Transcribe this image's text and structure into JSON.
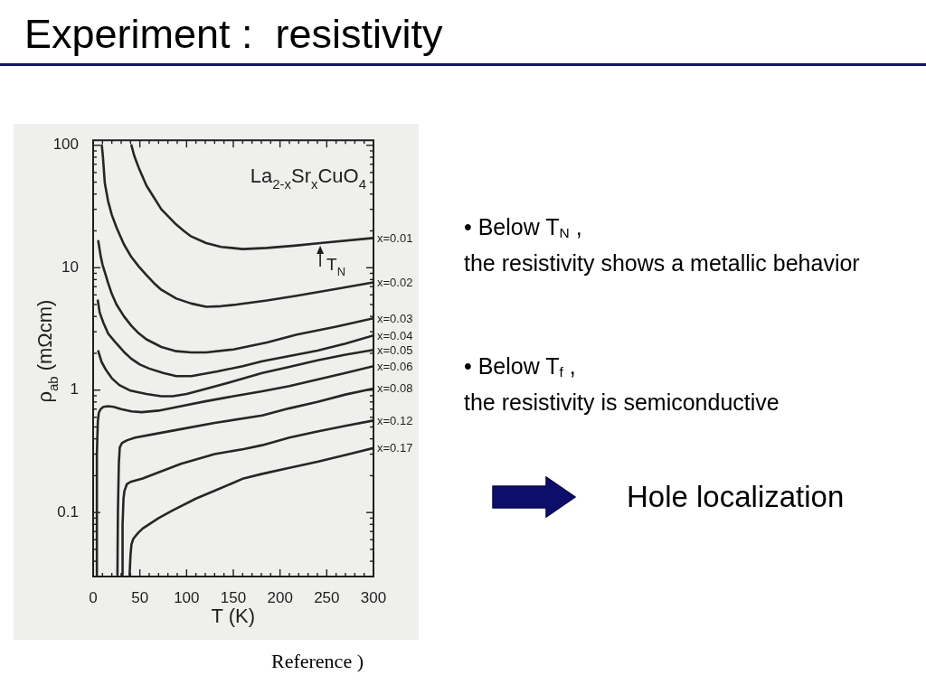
{
  "chart_data": {
    "type": "line",
    "title": "Experiment :  resistivity",
    "xlabel": "T (K)",
    "ylabel": "ρ$_{ab}$ (mΩcm)",
    "log": true,
    "marker": "none",
    "line_style": "solid",
    "legend": "right",
    "xlim": [
      0,
      300
    ],
    "ylim": [
      0.03,
      110
    ],
    "xticks": [
      0,
      {
        "value": 10,
        "label": null
      },
      {
        "value": 20,
        "label": null
      },
      {
        "value": 30,
        "label": null
      },
      {
        "value": 40,
        "label": null
      },
      50,
      {
        "value": 60,
        "label": null
      },
      {
        "value": 70,
        "label": null
      },
      {
        "value": 80,
        "label": null
      },
      {
        "value": 90,
        "label": null
      },
      100,
      {
        "value": 110,
        "label": null
      },
      {
        "value": 120,
        "label": null
      },
      {
        "value": 130,
        "label": null
      },
      {
        "value": 140,
        "label": null
      },
      150,
      {
        "value": 160,
        "label": null
      },
      {
        "value": 170,
        "label": null
      },
      {
        "value": 180,
        "label": null
      },
      {
        "value": 190,
        "label": null
      },
      200,
      {
        "value": 210,
        "label": null
      },
      {
        "value": 220,
        "label": null
      },
      {
        "value": 230,
        "label": null
      },
      {
        "value": 240,
        "label": null
      },
      250,
      {
        "value": 260,
        "label": null
      },
      {
        "value": 270,
        "label": null
      },
      {
        "value": 280,
        "label": null
      },
      {
        "value": 290,
        "label": null
      },
      300
    ],
    "yticks": [
      {
        "value": 0.04,
        "label": null
      },
      {
        "value": 0.05,
        "label": null
      },
      {
        "value": 0.06,
        "label": null
      },
      {
        "value": 0.07,
        "label": null
      },
      {
        "value": 0.08,
        "label": null
      },
      {
        "value": 0.09,
        "label": null
      },
      0.1,
      {
        "value": 0.2,
        "label": null
      },
      {
        "value": 0.3,
        "label": null
      },
      {
        "value": 0.4,
        "label": null
      },
      {
        "value": 0.5,
        "label": null
      },
      {
        "value": 0.6,
        "label": null
      },
      {
        "value": 0.7,
        "label": null
      },
      {
        "value": 0.8,
        "label": null
      },
      {
        "value": 0.9,
        "label": null
      },
      1,
      {
        "value": 2,
        "label": null
      },
      {
        "value": 3,
        "label": null
      },
      {
        "value": 4,
        "label": null
      },
      {
        "value": 5,
        "label": null
      },
      {
        "value": 6,
        "label": null
      },
      {
        "value": 7,
        "label": null
      },
      {
        "value": 8,
        "label": null
      },
      {
        "value": 9,
        "label": null
      },
      10,
      {
        "value": 20,
        "label": null
      },
      {
        "value": 30,
        "label": null
      },
      {
        "value": 40,
        "label": null
      },
      {
        "value": 50,
        "label": null
      },
      {
        "value": 60,
        "label": null
      },
      {
        "value": 70,
        "label": null
      },
      {
        "value": 80,
        "label": null
      },
      {
        "value": 90,
        "label": null
      },
      100
    ],
    "series": [
      {
        "name": "x=0.01",
        "color": "#262626",
        "x": [
          41,
          44,
          49,
          57,
          65,
          73,
          81,
          89,
          97,
          105,
          121,
          137,
          160,
          186,
          218,
          243,
          300
        ],
        "values": [
          100,
          82,
          65,
          47,
          37.5,
          30,
          26,
          22.5,
          20,
          18,
          15.9,
          14.8,
          14.2,
          14.5,
          15.2,
          15.9,
          17.5
        ]
      },
      {
        "name": "x=0.02",
        "color": "#262626",
        "x": [
          9.3,
          10.5,
          12.5,
          16,
          20,
          25,
          33,
          41,
          49,
          57,
          65,
          73,
          89,
          105,
          121,
          137,
          153.5,
          186,
          218,
          260,
          300
        ],
        "values": [
          100,
          80,
          49,
          35,
          27,
          21.3,
          15.5,
          12.2,
          10.2,
          8.7,
          7.5,
          6.6,
          5.6,
          5.1,
          4.8,
          4.85,
          5.0,
          5.4,
          5.9,
          6.7,
          7.6
        ]
      },
      {
        "name": "x=0.03",
        "color": "#262626",
        "x": [
          5.5,
          8,
          10,
          12.5,
          16,
          20,
          25,
          33,
          41,
          49,
          57,
          73,
          89,
          105,
          121,
          150,
          186,
          218,
          260,
          300
        ],
        "values": [
          16.5,
          12.5,
          10.6,
          9.2,
          7.5,
          6.1,
          5.0,
          4.0,
          3.35,
          2.9,
          2.6,
          2.25,
          2.08,
          2.03,
          2.03,
          2.15,
          2.45,
          2.84,
          3.3,
          3.86
        ]
      },
      {
        "name": "x=0.04",
        "color": "#262626",
        "x": [
          5,
          7,
          11,
          16,
          25,
          33,
          41,
          50,
          60,
          75,
          89,
          105,
          133,
          160,
          181,
          210,
          240,
          270,
          300
        ],
        "values": [
          5.4,
          4.3,
          3.55,
          2.9,
          2.4,
          2.05,
          1.8,
          1.62,
          1.5,
          1.38,
          1.3,
          1.3,
          1.42,
          1.57,
          1.72,
          1.9,
          2.1,
          2.4,
          2.8
        ]
      },
      {
        "name": "x=0.05",
        "color": "#262626",
        "x": [
          5.5,
          9,
          14,
          20,
          28,
          40,
          57,
          73,
          85,
          100,
          120,
          150,
          181,
          210,
          240,
          270,
          300
        ],
        "values": [
          2.08,
          1.7,
          1.45,
          1.25,
          1.1,
          0.99,
          0.93,
          0.89,
          0.89,
          0.93,
          1.02,
          1.18,
          1.38,
          1.55,
          1.75,
          1.95,
          2.13
        ]
      },
      {
        "name": "x=0.06",
        "color": "#262626",
        "x": [
          4,
          4,
          5,
          6,
          8,
          11,
          16,
          22,
          30,
          41,
          52,
          70,
          94,
          120,
          150,
          181,
          210,
          240,
          270,
          300
        ],
        "values": [
          0.031,
          0.3,
          0.55,
          0.65,
          0.7,
          0.73,
          0.74,
          0.73,
          0.7,
          0.67,
          0.66,
          0.68,
          0.74,
          0.81,
          0.89,
          0.98,
          1.08,
          1.22,
          1.38,
          1.57
        ]
      },
      {
        "name": "x=0.08",
        "color": "#262626",
        "x": [
          26,
          26.5,
          27.5,
          28.5,
          31,
          36.5,
          45,
          60,
          94,
          130,
          181,
          210,
          240,
          270,
          300
        ],
        "values": [
          0.031,
          0.1,
          0.25,
          0.34,
          0.37,
          0.39,
          0.41,
          0.43,
          0.48,
          0.54,
          0.62,
          0.71,
          0.8,
          0.92,
          1.03
        ]
      },
      {
        "name": "x=0.12",
        "color": "#262626",
        "x": [
          31,
          31.5,
          32.5,
          33.5,
          36,
          40,
          53,
          94,
          130,
          161,
          181,
          210,
          240,
          270,
          300
        ],
        "values": [
          0.031,
          0.08,
          0.13,
          0.15,
          0.17,
          0.178,
          0.19,
          0.25,
          0.3,
          0.33,
          0.355,
          0.41,
          0.46,
          0.51,
          0.565
        ]
      },
      {
        "name": "x=0.17",
        "color": "#262626",
        "x": [
          39,
          40,
          41,
          43,
          48,
          53,
          70,
          85,
          110,
          133,
          161,
          181,
          210,
          240,
          270,
          300
        ],
        "values": [
          0.031,
          0.045,
          0.055,
          0.061,
          0.068,
          0.074,
          0.09,
          0.104,
          0.13,
          0.154,
          0.19,
          0.207,
          0.232,
          0.26,
          0.295,
          0.336
        ]
      }
    ],
    "annotations": [
      "La$_{2-x}$Sr$_{x}$CuO$_{4}$",
      {
        "text": "T$_{N}$",
        "x": 243,
        "y": 15.9
      },
      "• Below T$_{N}$ ,",
      "the resistivity shows a metallic behavior",
      "• Below T$_{f}$ ,",
      "the resistivity is semiconductive",
      "Hole localization",
      "Reference )"
    ]
  }
}
